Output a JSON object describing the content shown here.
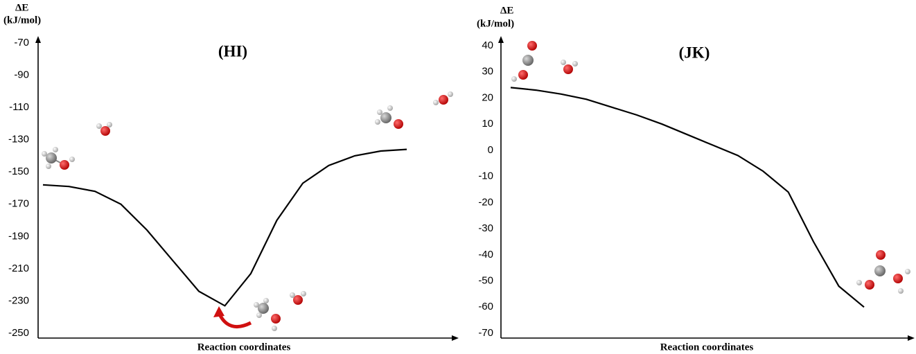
{
  "chart_data": [
    {
      "type": "line",
      "title": "(HI)",
      "ylabel": "ΔE",
      "yunit": "(kJ/mol)",
      "xlabel": "Reaction coordinates",
      "categories": [
        null,
        null,
        null,
        null,
        null,
        null,
        null,
        null,
        null,
        null,
        null,
        null,
        null,
        null,
        null
      ],
      "values": [
        -158,
        -159,
        -162,
        -170,
        -186,
        -205,
        -224,
        -233,
        -213,
        -180,
        -157,
        -146,
        -140,
        -137,
        -136
      ],
      "color": "#000000",
      "ylim": [
        -250,
        -70
      ],
      "yticks": [
        -250,
        -230,
        -210,
        -190,
        -170,
        -150,
        -130,
        -110,
        -90,
        -70
      ]
    },
    {
      "type": "line",
      "title": "(JK)",
      "ylabel": "ΔE",
      "yunit": "(kJ/mol)",
      "xlabel": "Reaction coordinates",
      "categories": [
        null,
        null,
        null,
        null,
        null,
        null,
        null,
        null,
        null,
        null,
        null,
        null,
        null,
        null,
        null
      ],
      "values": [
        24,
        23,
        21.5,
        19.5,
        16.5,
        13.5,
        10,
        6,
        2,
        -2,
        -8,
        -16,
        -35,
        -52,
        -60
      ],
      "color": "#000000",
      "ylim": [
        -70,
        40
      ],
      "yticks": [
        -70,
        -60,
        -50,
        -40,
        -30,
        -20,
        -10,
        0,
        10,
        20,
        30,
        40
      ]
    }
  ]
}
